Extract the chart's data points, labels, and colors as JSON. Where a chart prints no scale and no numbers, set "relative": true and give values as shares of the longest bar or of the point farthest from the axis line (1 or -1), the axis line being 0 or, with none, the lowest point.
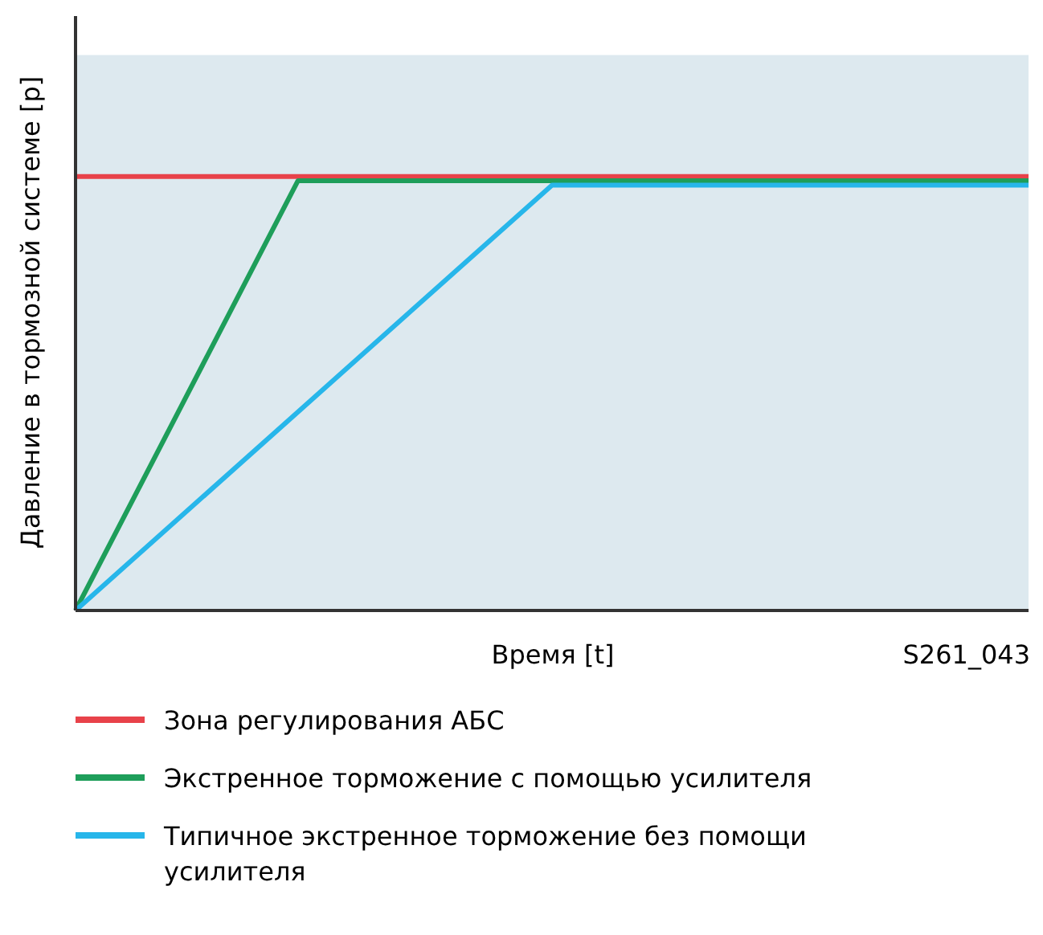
{
  "chart_data": {
    "type": "line",
    "relative": true,
    "xlabel": "Время [t]",
    "ylabel": "Давление в тормозной системе [p]",
    "annotations": [
      "S261_043"
    ],
    "categories": [
      null,
      null,
      null,
      null,
      null,
      null,
      null,
      null,
      null,
      null,
      null,
      null,
      null,
      null,
      null,
      null,
      null,
      null,
      null,
      null,
      null,
      null,
      null,
      null,
      null,
      null,
      null,
      null,
      null,
      null,
      null
    ],
    "series": [
      {
        "name": "Зона регулирования АБС",
        "color": "#e8424a",
        "values": [
          1,
          null,
          null,
          null,
          null,
          null,
          null,
          null,
          null,
          null,
          null,
          null,
          null,
          null,
          null,
          null,
          null,
          null,
          null,
          null,
          null,
          null,
          null,
          null,
          null,
          null,
          null,
          null,
          null,
          null,
          1
        ]
      },
      {
        "name": "Экстренное торможение с помощью усилителя",
        "color": "#1e9e5a",
        "values": [
          0,
          null,
          null,
          null,
          null,
          null,
          null,
          0.99,
          null,
          null,
          null,
          null,
          null,
          null,
          null,
          null,
          null,
          null,
          null,
          null,
          null,
          null,
          null,
          null,
          null,
          null,
          null,
          null,
          null,
          null,
          0.99
        ]
      },
      {
        "name": "Типичное экстренное торможение без помощи усилителя",
        "color": "#27b6ea",
        "values": [
          0,
          null,
          null,
          null,
          null,
          null,
          null,
          null,
          null,
          null,
          null,
          null,
          null,
          null,
          null,
          0.98,
          null,
          null,
          null,
          null,
          null,
          null,
          null,
          null,
          null,
          null,
          null,
          null,
          null,
          null,
          0.98
        ]
      }
    ],
    "bands": [
      {
        "axis": "y",
        "from": 0,
        "to": 1.28,
        "color": "#dde9ef"
      }
    ],
    "legend": "bottom",
    "marker": "none",
    "line_style": "solid"
  }
}
